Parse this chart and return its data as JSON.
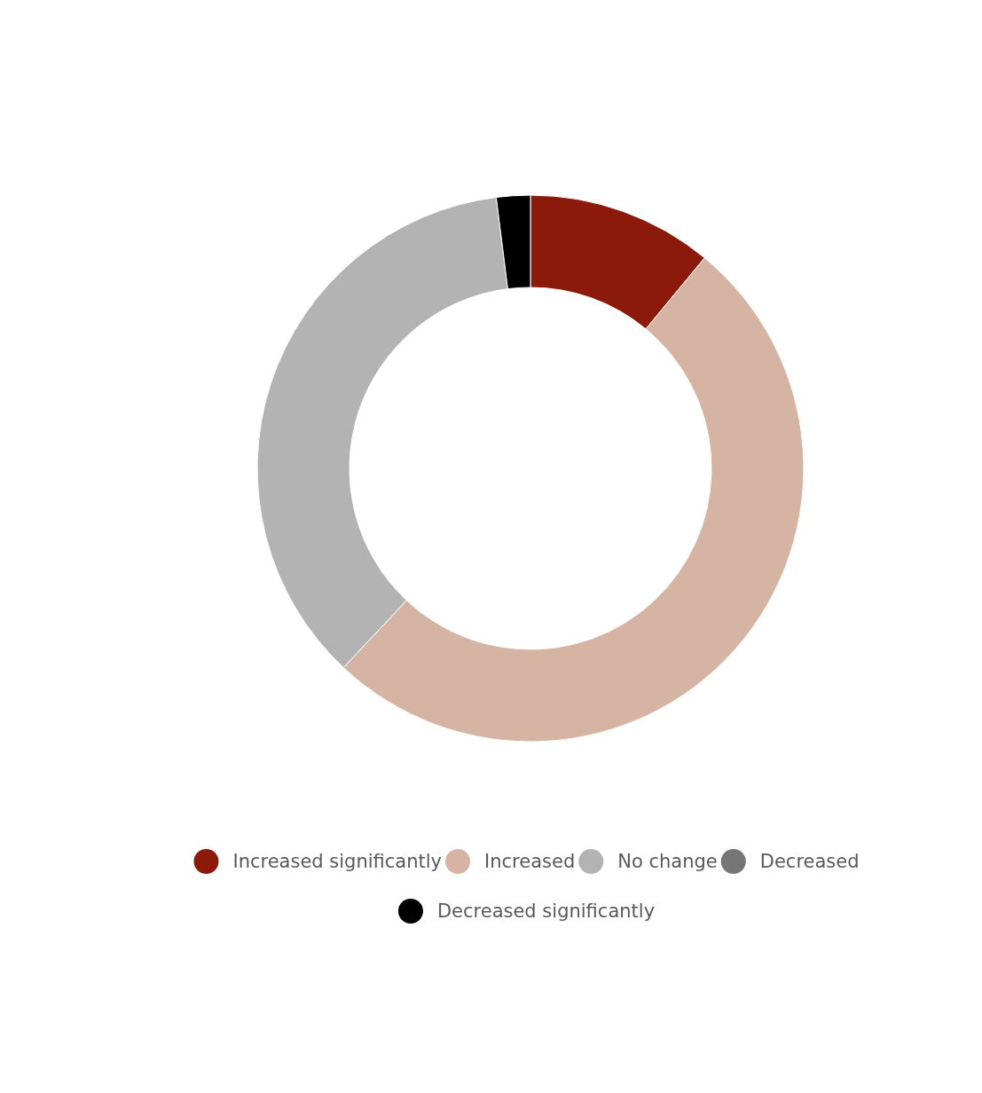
{
  "chart_data": {
    "type": "donut",
    "categories": [
      "Increased significantly",
      "Increased",
      "No change",
      "Decreased",
      "Decreased significantly"
    ],
    "values": [
      11,
      51,
      36,
      0,
      2
    ],
    "colors": [
      "#8b1a0a",
      "#d5b4a3",
      "#b3b3b3",
      "#767676",
      "#000000"
    ],
    "legend": "bottom"
  }
}
